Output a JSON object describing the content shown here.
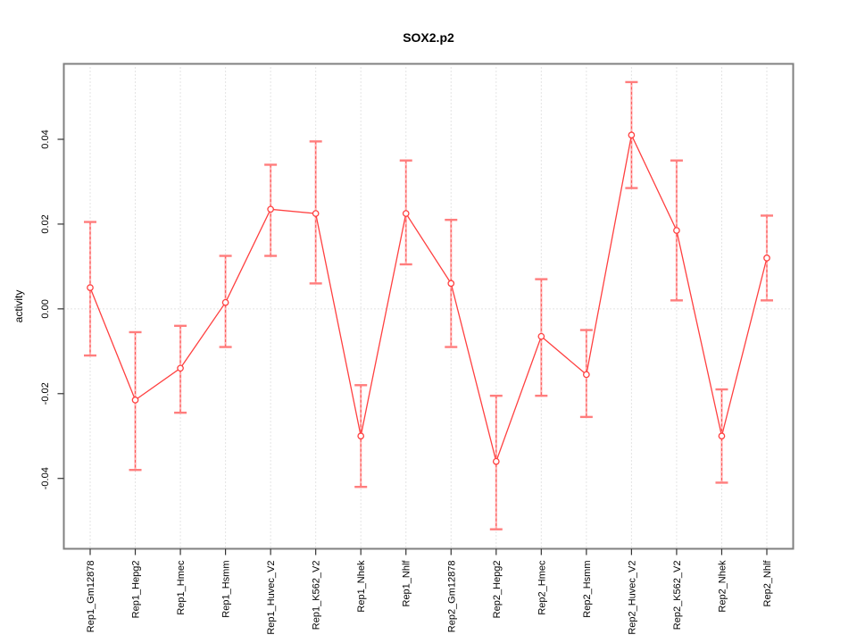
{
  "chart_data": {
    "type": "line",
    "error_bars": true,
    "title": "SOX2.p2",
    "xlabel": "",
    "ylabel": "activity",
    "ylim": [
      -0.0566,
      0.0578
    ],
    "grid": "dotted vertical gridline at each category; dotted horizontal line at y=0; no legend",
    "yticks": [
      {
        "value": -0.04,
        "label": "-0.04"
      },
      {
        "value": -0.02,
        "label": "-0.02"
      },
      {
        "value": 0.0,
        "label": "0.00"
      },
      {
        "value": 0.02,
        "label": "0.02"
      },
      {
        "value": 0.04,
        "label": "0.04"
      }
    ],
    "series_name": "activity",
    "points": [
      {
        "label": "Rep1_Gm12878",
        "value": 0.005,
        "lower": -0.011,
        "upper": 0.0205
      },
      {
        "label": "Rep1_Hepg2",
        "value": -0.0215,
        "lower": -0.038,
        "upper": -0.0055
      },
      {
        "label": "Rep1_Hmec",
        "value": -0.014,
        "lower": -0.0245,
        "upper": -0.004
      },
      {
        "label": "Rep1_Hsmm",
        "value": 0.0015,
        "lower": -0.009,
        "upper": 0.0125
      },
      {
        "label": "Rep1_Huvec_V2",
        "value": 0.0235,
        "lower": 0.0125,
        "upper": 0.034
      },
      {
        "label": "Rep1_K562_V2",
        "value": 0.0225,
        "lower": 0.006,
        "upper": 0.0395
      },
      {
        "label": "Rep1_Nhek",
        "value": -0.03,
        "lower": -0.042,
        "upper": -0.018
      },
      {
        "label": "Rep1_Nhlf",
        "value": 0.0225,
        "lower": 0.0105,
        "upper": 0.035
      },
      {
        "label": "Rep2_Gm12878",
        "value": 0.006,
        "lower": -0.009,
        "upper": 0.021
      },
      {
        "label": "Rep2_Hepg2",
        "value": -0.036,
        "lower": -0.052,
        "upper": -0.0205
      },
      {
        "label": "Rep2_Hmec",
        "value": -0.0065,
        "lower": -0.0205,
        "upper": 0.007
      },
      {
        "label": "Rep2_Hsmm",
        "value": -0.0155,
        "lower": -0.0255,
        "upper": -0.005
      },
      {
        "label": "Rep2_Huvec_V2",
        "value": 0.041,
        "lower": 0.0285,
        "upper": 0.0535
      },
      {
        "label": "Rep2_K562_V2",
        "value": 0.0185,
        "lower": 0.002,
        "upper": 0.035
      },
      {
        "label": "Rep2_Nhek",
        "value": -0.03,
        "lower": -0.041,
        "upper": -0.019
      },
      {
        "label": "Rep2_Nhlf",
        "value": 0.012,
        "lower": 0.002,
        "upper": 0.022
      }
    ],
    "colors": {
      "series_line": "#ff4040",
      "point_stroke": "#ff4040",
      "error_bar_underlay": "#ffb3b3",
      "error_bar_dash": "#ff5252",
      "error_bar_cap": "#ff7d7d",
      "gridline": "#c8c8c8",
      "plot_border": "#808080",
      "tick": "#333333",
      "text": "#000000"
    }
  }
}
